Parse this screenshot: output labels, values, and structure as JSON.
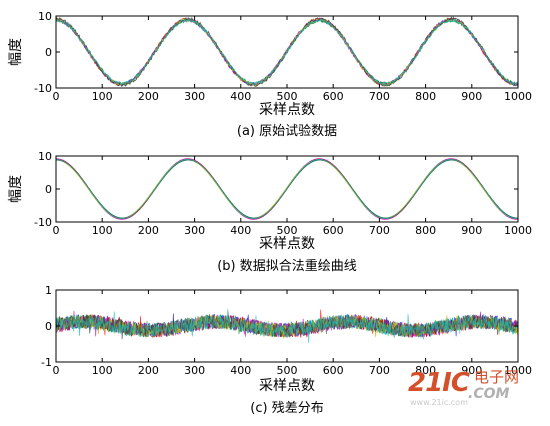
{
  "chart_data": [
    {
      "type": "line",
      "caption": "(a) 原始试验数据",
      "xlabel": "采样点数",
      "ylabel": "幅度",
      "xlim": [
        0,
        1000
      ],
      "ylim": [
        -10,
        10
      ],
      "xticks": [
        0,
        100,
        200,
        300,
        400,
        500,
        600,
        700,
        800,
        900,
        1000
      ],
      "yticks": [
        -10,
        0,
        10
      ],
      "grid": false,
      "series_count": 8,
      "wave": {
        "amplitude": 9,
        "period_points": 285,
        "peak_at": [
          0,
          285,
          570,
          855
        ],
        "trough_at": [
          142,
          427,
          712,
          997
        ]
      },
      "colors": [
        "#0000ff",
        "#008000",
        "#ff0000",
        "#00bfbf",
        "#bf00bf",
        "#bfbf00",
        "#404040",
        "#2ab0a0"
      ]
    },
    {
      "type": "line",
      "caption": "(b) 数据拟合法重绘曲线",
      "xlabel": "采样点数",
      "ylabel": "幅度",
      "xlim": [
        0,
        1000
      ],
      "ylim": [
        -10,
        10
      ],
      "xticks": [
        0,
        100,
        200,
        300,
        400,
        500,
        600,
        700,
        800,
        900,
        1000
      ],
      "yticks": [
        -10,
        0,
        10
      ],
      "grid": false,
      "series_count": 8,
      "wave": {
        "amplitude": 9,
        "period_points": 285
      },
      "colors": [
        "#0000ff",
        "#008000",
        "#ff0000",
        "#00bfbf",
        "#bf00bf",
        "#bfbf00",
        "#404040",
        "#2ab0a0"
      ]
    },
    {
      "type": "line",
      "caption": "(c) 残差分布",
      "xlabel": "采样点数",
      "ylabel": "",
      "xlim": [
        0,
        1000
      ],
      "ylim": [
        -1,
        1
      ],
      "xticks": [
        0,
        100,
        200,
        300,
        400,
        500,
        600,
        700,
        800,
        900,
        1000
      ],
      "yticks": [
        -1,
        0,
        1
      ],
      "grid": false,
      "series_count": 8,
      "residual": {
        "noise_amplitude": 0.2,
        "drift_amplitude": 0.12,
        "drift_period_points": 285
      },
      "colors": [
        "#0000ff",
        "#008000",
        "#ff0000",
        "#00bfbf",
        "#bf00bf",
        "#bfbf00",
        "#404040",
        "#2ab0a0"
      ]
    }
  ],
  "watermark": {
    "main": "21IC",
    "cn": "电子网",
    "com": ".COM",
    "small": "www.21ic.com"
  }
}
